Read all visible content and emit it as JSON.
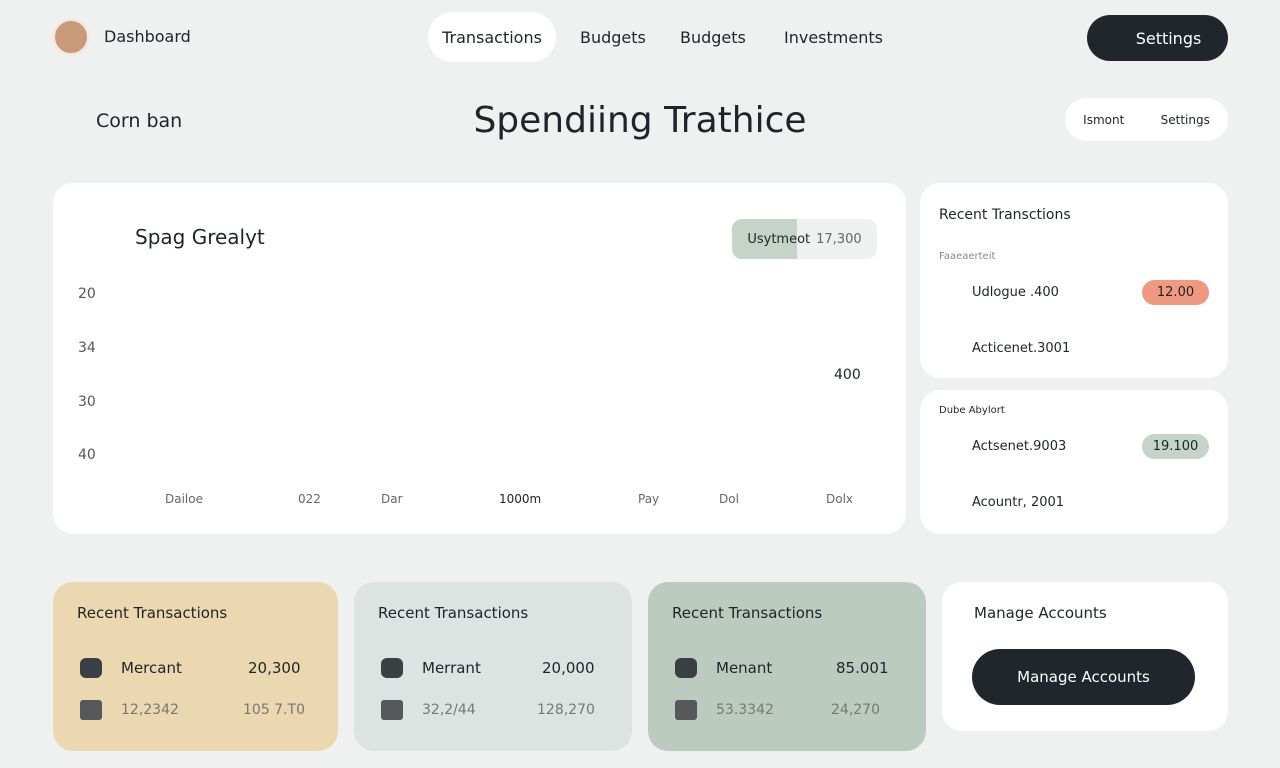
{
  "header": {
    "brand": "Dashboard",
    "nav": [
      "Transactions",
      "Budgets",
      "Budgets",
      "Investments"
    ],
    "settings": "Settings"
  },
  "subheader": {
    "brand": "Corn ban",
    "title": "Spendiing Trathice",
    "toggle": [
      "Ismont",
      "Settings"
    ]
  },
  "chart_card": {
    "title": "Spag Grealyt",
    "badge_label": "Usytmeot",
    "badge_value": "17,300",
    "y_labels": [
      "20",
      "34",
      "30",
      "40"
    ],
    "x_labels": [
      "Dailoe",
      "022",
      "Dar",
      "1000m",
      "Pay",
      "Dol",
      "Dolx"
    ],
    "annotation": "400"
  },
  "recent_panel": {
    "title": "Recent Transctions",
    "section": "Faaeaerteit",
    "rows": [
      {
        "name": "Udlogue .400",
        "amount": "12.00"
      },
      {
        "name": "Acticenet.3001"
      }
    ]
  },
  "second_panel": {
    "section": "Dube Abylort",
    "rows": [
      {
        "name": "Actsenet.9003",
        "amount": "19.100"
      },
      {
        "name": "Acountr, 2001"
      }
    ]
  },
  "cards": [
    {
      "title": "Recent Transactions",
      "merchant": "Mercant",
      "amount": "20,300",
      "sub_a": "12,2342",
      "sub_b": "105 7.T0"
    },
    {
      "title": "Recent Transactions",
      "merchant": "Merrant",
      "amount": "20,000",
      "sub_a": "32,2/44",
      "sub_b": "128,270"
    },
    {
      "title": "Recent Transactions",
      "merchant": "Menant",
      "amount": "85.001",
      "sub_a": "53.3342",
      "sub_b": "24,270"
    }
  ],
  "manage": {
    "title": "Manage Accounts",
    "button": "Manage Accounts"
  }
}
